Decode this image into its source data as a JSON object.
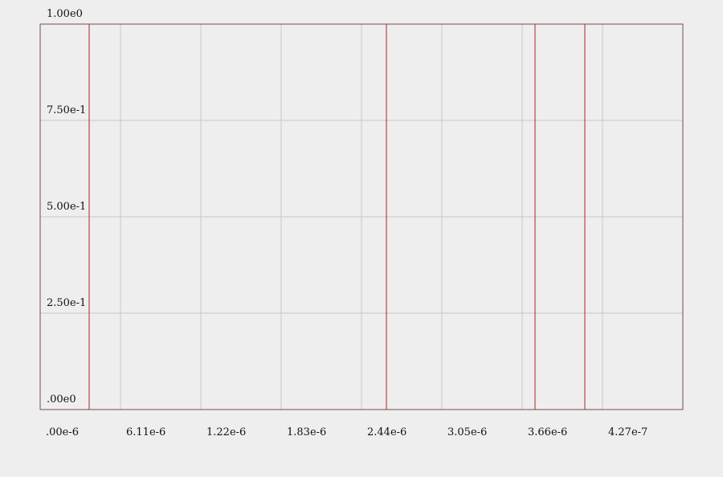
{
  "chart_data": {
    "type": "line",
    "title": "",
    "xlabel": "",
    "ylabel": "",
    "x_ticks": [
      ".00e-6",
      "6.11e-6",
      "1.22e-6",
      "1.83e-6",
      "2.44e-6",
      "3.05e-6",
      "3.66e-6",
      "4.27e-7"
    ],
    "y_ticks": [
      ".00e0",
      "2.50e-1",
      "5.00e-1",
      "7.50e-1",
      "1.00e0"
    ],
    "xlim": [
      0,
      8
    ],
    "ylim": [
      0,
      1
    ],
    "grid": true,
    "series": [
      {
        "color": "#b22222",
        "points": [
          [
            0,
            0
          ],
          [
            0.61,
            0
          ],
          [
            0.61,
            1
          ],
          [
            4.31,
            1
          ],
          [
            4.31,
            0
          ],
          [
            6.16,
            0
          ],
          [
            6.16,
            1
          ],
          [
            6.78,
            1
          ],
          [
            6.78,
            0
          ],
          [
            8,
            0
          ]
        ]
      }
    ],
    "colors": {
      "background": "#eeeeee",
      "grid": "#c6c6d0",
      "frame": "#7a4a4a",
      "series": "#b22222",
      "text": "#111111"
    }
  }
}
